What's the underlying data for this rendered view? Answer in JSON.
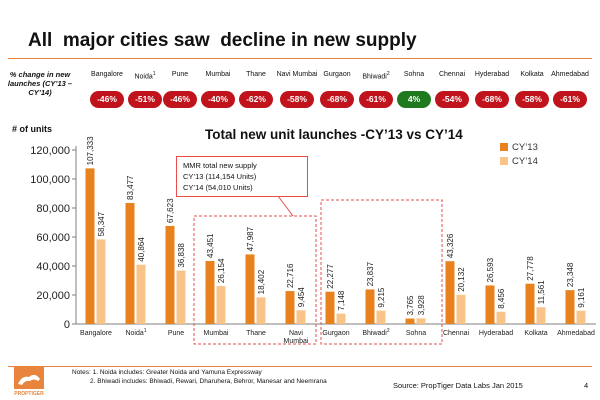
{
  "slide": {
    "title": "All  major cities saw  decline in new supply",
    "pct_label": "% change in new launches (CY’13 – CY’14)",
    "units_label": "# of units",
    "callout": [
      "MMR total new supply",
      "CY’13 (114,154 Units)",
      "CY’14 (54,010 Units)"
    ],
    "notes": [
      "Notes: 1. Noida includes: Greater Noida and Yamuna Expressway",
      "          2. Bhiwadi includes: Bhiwadi, Rewari, Dharuhera, Behror, Manesar and Neemrana"
    ],
    "source": "Source: PropTiger Data Labs Jan 2015",
    "page_number": "4",
    "logo_text": "PROPTIGER",
    "accent_color": "#e8843c",
    "decline_color": "#c0131b",
    "growth_color": "#1f7a1f"
  },
  "pct_change": [
    {
      "city": "Bangalore",
      "sup": "",
      "value": "-46%"
    },
    {
      "city": "Noida",
      "sup": "1",
      "value": "-51%"
    },
    {
      "city": "Pune",
      "sup": "",
      "value": "-46%"
    },
    {
      "city": "Mumbai",
      "sup": "",
      "value": "-40%"
    },
    {
      "city": "Thane",
      "sup": "",
      "value": "-62%"
    },
    {
      "city": "Navi Mumbai",
      "sup": "",
      "value": "-58%"
    },
    {
      "city": "Gurgaon",
      "sup": "",
      "value": "-68%"
    },
    {
      "city": "Bhiwadi",
      "sup": "2",
      "value": "-61%"
    },
    {
      "city": "Sohna",
      "sup": "",
      "value": "4%"
    },
    {
      "city": "Chennai",
      "sup": "",
      "value": "-54%"
    },
    {
      "city": "Hyderabad",
      "sup": "",
      "value": "-68%"
    },
    {
      "city": "Kolkata",
      "sup": "",
      "value": "-58%"
    },
    {
      "city": "Ahmedabad",
      "sup": "",
      "value": "-61%"
    }
  ],
  "chart_data": {
    "type": "bar",
    "title": "Total new unit launches -CY’13 vs CY’14",
    "ylabel": "# of units",
    "ylim": [
      0,
      120000
    ],
    "yticks": [
      0,
      20000,
      40000,
      60000,
      80000,
      100000,
      120000
    ],
    "ytick_labels": [
      "0",
      "20,000",
      "40,000",
      "60,000",
      "80,000",
      "100,000",
      "120,000"
    ],
    "grid": false,
    "legend_position": "top-right",
    "categories": [
      "Bangalore",
      "Noida",
      "Pune",
      "Mumbai",
      "Thane",
      "Navi Mumbai",
      "Gurgaon",
      "Bhiwadi",
      "Sohna",
      "Chennai",
      "Hyderabad",
      "Kolkata",
      "Ahmedabad"
    ],
    "category_sups": [
      "",
      "1",
      "",
      "",
      "",
      "",
      "",
      "2",
      "",
      "",
      "",
      "",
      ""
    ],
    "series": [
      {
        "name": "CY’13",
        "color": "#e8821e",
        "values": [
          107333,
          83477,
          67623,
          43451,
          47987,
          22716,
          22277,
          23837,
          3765,
          43326,
          26593,
          27778,
          23348
        ],
        "labels": [
          "107,333",
          "83,477",
          "67,623",
          "43,451",
          "47,987",
          "22,716",
          "22,277",
          "23,837",
          "3,765",
          "43,326",
          "26,593",
          "27,778",
          "23,348"
        ]
      },
      {
        "name": "CY’14",
        "color": "#f9c48a",
        "values": [
          58347,
          40864,
          36838,
          26154,
          18402,
          9454,
          7148,
          9215,
          3928,
          20132,
          8456,
          11561,
          9161
        ],
        "labels": [
          "58,347",
          "40,864",
          "36,838",
          "26,154",
          "18,402",
          "9,454",
          "7,148",
          "9,215",
          "3,928",
          "20,132",
          "8,456",
          "11,561",
          "9,161"
        ]
      }
    ]
  }
}
